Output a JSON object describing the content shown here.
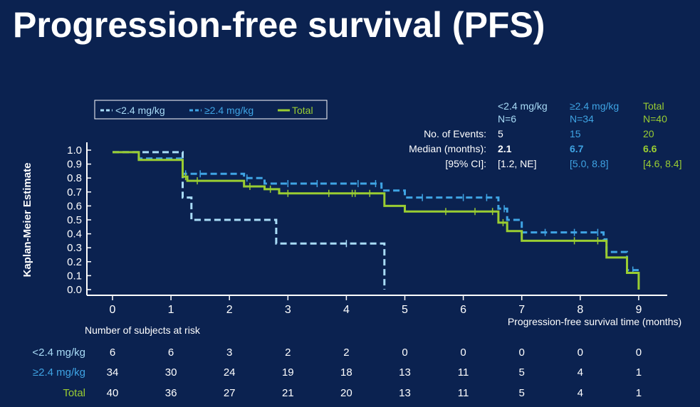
{
  "title": "Progression-free survival (PFS)",
  "colors": {
    "background": "#0b2250",
    "low": "#a9dcf7",
    "high": "#3fa4e4",
    "total": "#9acd32",
    "text": "#ffffff"
  },
  "chart_data": {
    "type": "line",
    "step": true,
    "ylabel": "Kaplan-Meier Estimate",
    "xlabel": "Progression-free survival time (months)",
    "xlim": [
      0,
      9
    ],
    "ylim": [
      0,
      1
    ],
    "x_ticks": [
      "0",
      "1",
      "2",
      "3",
      "4",
      "5",
      "6",
      "7",
      "8",
      "9"
    ],
    "y_ticks": [
      "0.0",
      "0.1",
      "0.2",
      "0.3",
      "0.4",
      "0.5",
      "0.6",
      "0.7",
      "0.8",
      "0.9",
      "1.0"
    ],
    "legend": [
      "<2.4 mg/kg",
      "≥2.4 mg/kg",
      "Total"
    ],
    "legend_position": "top-left",
    "series": [
      {
        "name": "<2.4 mg/kg",
        "style": "dashed",
        "points": [
          [
            0,
            0.985
          ],
          [
            1.2,
            0.985
          ],
          [
            1.2,
            0.66
          ],
          [
            1.35,
            0.66
          ],
          [
            1.35,
            0.5
          ],
          [
            2.8,
            0.5
          ],
          [
            2.8,
            0.33
          ],
          [
            4.65,
            0.33
          ],
          [
            4.65,
            0.0
          ]
        ],
        "censored": [
          [
            4.0,
            0.33
          ]
        ]
      },
      {
        "name": "≥2.4 mg/kg",
        "style": "dashed",
        "points": [
          [
            0,
            0.985
          ],
          [
            0.45,
            0.985
          ],
          [
            0.45,
            0.94
          ],
          [
            1.2,
            0.94
          ],
          [
            1.2,
            0.83
          ],
          [
            2.25,
            0.83
          ],
          [
            2.25,
            0.8
          ],
          [
            2.6,
            0.8
          ],
          [
            2.6,
            0.76
          ],
          [
            4.6,
            0.76
          ],
          [
            4.6,
            0.71
          ],
          [
            5.0,
            0.71
          ],
          [
            5.0,
            0.66
          ],
          [
            6.6,
            0.66
          ],
          [
            6.6,
            0.58
          ],
          [
            6.75,
            0.58
          ],
          [
            6.75,
            0.5
          ],
          [
            7.0,
            0.5
          ],
          [
            7.0,
            0.41
          ],
          [
            8.4,
            0.41
          ],
          [
            8.4,
            0.36
          ],
          [
            8.45,
            0.36
          ],
          [
            8.45,
            0.27
          ],
          [
            8.8,
            0.27
          ],
          [
            8.8,
            0.14
          ],
          [
            9.0,
            0.14
          ]
        ],
        "censored": [
          [
            1.25,
            0.83
          ],
          [
            1.5,
            0.83
          ],
          [
            2.3,
            0.8
          ],
          [
            3.0,
            0.76
          ],
          [
            3.5,
            0.76
          ],
          [
            4.2,
            0.76
          ],
          [
            4.5,
            0.76
          ],
          [
            5.3,
            0.66
          ],
          [
            6.0,
            0.66
          ],
          [
            6.4,
            0.66
          ],
          [
            6.7,
            0.58
          ],
          [
            7.4,
            0.41
          ],
          [
            7.9,
            0.41
          ],
          [
            8.3,
            0.41
          ],
          [
            8.9,
            0.14
          ]
        ]
      },
      {
        "name": "Total",
        "style": "solid",
        "points": [
          [
            0,
            0.985
          ],
          [
            0.45,
            0.985
          ],
          [
            0.45,
            0.93
          ],
          [
            1.2,
            0.93
          ],
          [
            1.2,
            0.81
          ],
          [
            1.28,
            0.81
          ],
          [
            1.28,
            0.78
          ],
          [
            2.25,
            0.78
          ],
          [
            2.25,
            0.74
          ],
          [
            2.6,
            0.74
          ],
          [
            2.6,
            0.72
          ],
          [
            2.85,
            0.72
          ],
          [
            2.85,
            0.69
          ],
          [
            4.65,
            0.69
          ],
          [
            4.65,
            0.6
          ],
          [
            5.0,
            0.6
          ],
          [
            5.0,
            0.56
          ],
          [
            6.6,
            0.56
          ],
          [
            6.6,
            0.48
          ],
          [
            6.75,
            0.48
          ],
          [
            6.75,
            0.42
          ],
          [
            7.0,
            0.42
          ],
          [
            7.0,
            0.35
          ],
          [
            8.45,
            0.35
          ],
          [
            8.45,
            0.23
          ],
          [
            8.8,
            0.23
          ],
          [
            8.8,
            0.12
          ],
          [
            9.0,
            0.12
          ],
          [
            9.0,
            0.0
          ]
        ],
        "censored": [
          [
            1.25,
            0.81
          ],
          [
            1.45,
            0.78
          ],
          [
            2.35,
            0.74
          ],
          [
            2.7,
            0.72
          ],
          [
            3.0,
            0.69
          ],
          [
            3.7,
            0.69
          ],
          [
            4.1,
            0.69
          ],
          [
            4.15,
            0.69
          ],
          [
            4.4,
            0.69
          ],
          [
            5.7,
            0.56
          ],
          [
            6.2,
            0.56
          ],
          [
            6.5,
            0.56
          ],
          [
            6.68,
            0.48
          ],
          [
            7.9,
            0.35
          ],
          [
            8.3,
            0.35
          ]
        ]
      }
    ]
  },
  "stats_table": {
    "headers": [
      {
        "line1": "<2.4 mg/kg",
        "line2": "N=6"
      },
      {
        "line1": "≥2.4 mg/kg",
        "line2": "N=34"
      },
      {
        "line1": "Total",
        "line2": "N=40"
      }
    ],
    "rows": [
      {
        "label": "No. of Events:",
        "values": [
          "5",
          "15",
          "20"
        ],
        "bold": false
      },
      {
        "label": "Median (months):",
        "values": [
          "2.1",
          "6.7",
          "6.6"
        ],
        "bold": true
      },
      {
        "label": "[95% CI]:",
        "values": [
          "[1.2, NE]",
          "[5.0, 8.8]",
          "[4.6, 8.4]"
        ],
        "bold": false
      }
    ]
  },
  "risk_table": {
    "title": "Number of subjects at risk",
    "rows": [
      {
        "label": "<2.4 mg/kg",
        "values": [
          "6",
          "6",
          "3",
          "2",
          "2",
          "0",
          "0",
          "0",
          "0",
          "0"
        ]
      },
      {
        "label": "≥2.4 mg/kg",
        "values": [
          "34",
          "30",
          "24",
          "19",
          "18",
          "13",
          "11",
          "5",
          "4",
          "1"
        ]
      },
      {
        "label": "Total",
        "values": [
          "40",
          "36",
          "27",
          "21",
          "20",
          "13",
          "11",
          "5",
          "4",
          "1"
        ]
      }
    ]
  }
}
